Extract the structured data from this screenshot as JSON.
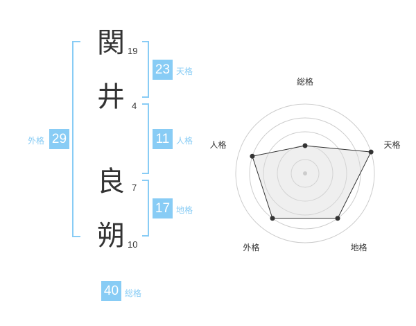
{
  "name": {
    "chars": [
      {
        "char": "関",
        "strokes": "19"
      },
      {
        "char": "井",
        "strokes": "4"
      },
      {
        "char": "良",
        "strokes": "7"
      },
      {
        "char": "朔",
        "strokes": "10"
      }
    ]
  },
  "kaku": {
    "tenkaku": {
      "value": "23",
      "label": "天格"
    },
    "jinkaku": {
      "value": "11",
      "label": "人格"
    },
    "chikaku": {
      "value": "17",
      "label": "地格"
    },
    "gaikaku": {
      "value": "29",
      "label": "外格"
    },
    "soukaku": {
      "value": "40",
      "label": "総格"
    }
  },
  "accent_color": "#88ccf5",
  "chart_data": {
    "type": "radar",
    "categories": [
      "総格",
      "天格",
      "地格",
      "外格",
      "人格"
    ],
    "values": [
      2,
      5,
      4,
      4,
      4
    ],
    "range": [
      0,
      5
    ]
  }
}
